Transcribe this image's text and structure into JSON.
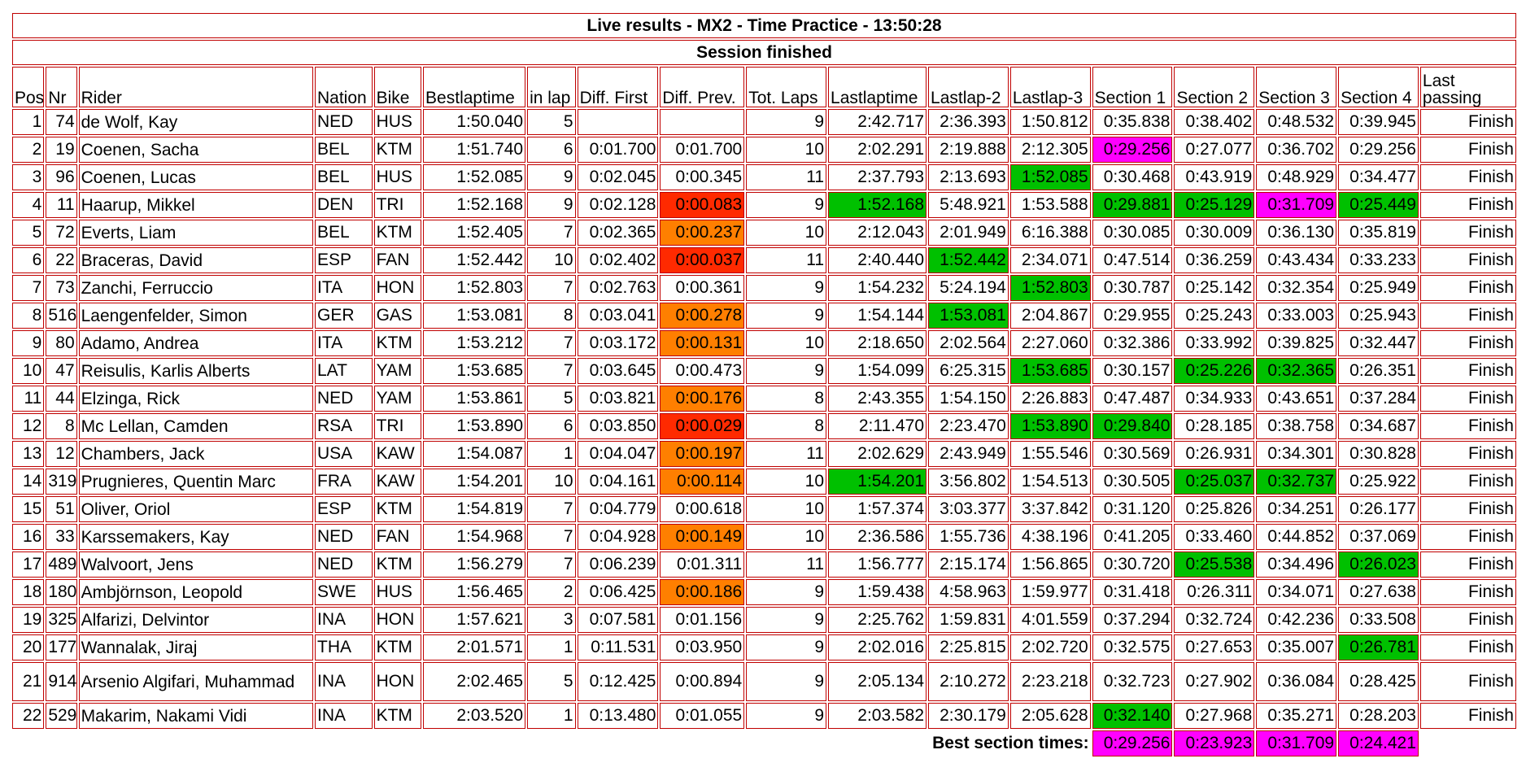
{
  "title": "Live results - MX2 - Time Practice - 13:50:28",
  "status": "Session finished",
  "columns": [
    "Pos",
    "Nr",
    "Rider",
    "Nation",
    "Bike",
    "Bestlaptime",
    "in lap",
    "Diff. First",
    "Diff. Prev.",
    "Tot. Laps",
    "Lastlaptime",
    "Lastlap-2",
    "Lastlap-3",
    "Section 1",
    "Section 2",
    "Section 3",
    "Section 4",
    "Last passing"
  ],
  "colors": {
    "best": "#ff00ff",
    "personal_best": "#00c000",
    "slower_big": "#ff2a00",
    "slower": "#ff7f00",
    "border": "#c00000"
  },
  "rows": [
    {
      "pos": "1",
      "nr": "74",
      "rider": "de Wolf, Kay",
      "nation": "NED",
      "bike": "HUS",
      "best": "1:50.040",
      "inlap": "5",
      "diff_first": "",
      "diff_prev": "",
      "tot": "9",
      "last": "2:42.717",
      "last2": "2:36.393",
      "last3": "1:50.812",
      "s1": "0:35.838",
      "s2": "0:38.402",
      "s3": "0:48.532",
      "s4": "0:39.945",
      "passing": "Finish",
      "hl": {}
    },
    {
      "pos": "2",
      "nr": "19",
      "rider": "Coenen, Sacha",
      "nation": "BEL",
      "bike": "KTM",
      "best": "1:51.740",
      "inlap": "6",
      "diff_first": "0:01.700",
      "diff_prev": "0:01.700",
      "tot": "10",
      "last": "2:02.291",
      "last2": "2:19.888",
      "last3": "2:12.305",
      "s1": "0:29.256",
      "s2": "0:27.077",
      "s3": "0:36.702",
      "s4": "0:29.256",
      "passing": "Finish",
      "hl": {
        "s1": "best"
      }
    },
    {
      "pos": "3",
      "nr": "96",
      "rider": "Coenen, Lucas",
      "nation": "BEL",
      "bike": "HUS",
      "best": "1:52.085",
      "inlap": "9",
      "diff_first": "0:02.045",
      "diff_prev": "0:00.345",
      "tot": "11",
      "last": "2:37.793",
      "last2": "2:13.693",
      "last3": "1:52.085",
      "s1": "0:30.468",
      "s2": "0:43.919",
      "s3": "0:48.929",
      "s4": "0:34.477",
      "passing": "Finish",
      "hl": {
        "last3": "pb"
      }
    },
    {
      "pos": "4",
      "nr": "11",
      "rider": "Haarup, Mikkel",
      "nation": "DEN",
      "bike": "TRI",
      "best": "1:52.168",
      "inlap": "9",
      "diff_first": "0:02.128",
      "diff_prev": "0:00.083",
      "tot": "9",
      "last": "1:52.168",
      "last2": "5:48.921",
      "last3": "1:53.588",
      "s1": "0:29.881",
      "s2": "0:25.129",
      "s3": "0:31.709",
      "s4": "0:25.449",
      "passing": "Finish",
      "hl": {
        "diff_prev": "slowbig",
        "last": "pb",
        "s1": "pb",
        "s2": "pb",
        "s3": "best",
        "s4": "pb"
      }
    },
    {
      "pos": "5",
      "nr": "72",
      "rider": "Everts, Liam",
      "nation": "BEL",
      "bike": "KTM",
      "best": "1:52.405",
      "inlap": "7",
      "diff_first": "0:02.365",
      "diff_prev": "0:00.237",
      "tot": "10",
      "last": "2:12.043",
      "last2": "2:01.949",
      "last3": "6:16.388",
      "s1": "0:30.085",
      "s2": "0:30.009",
      "s3": "0:36.130",
      "s4": "0:35.819",
      "passing": "Finish",
      "hl": {
        "diff_prev": "slow"
      }
    },
    {
      "pos": "6",
      "nr": "22",
      "rider": "Braceras, David",
      "nation": "ESP",
      "bike": "FAN",
      "best": "1:52.442",
      "inlap": "10",
      "diff_first": "0:02.402",
      "diff_prev": "0:00.037",
      "tot": "11",
      "last": "2:40.440",
      "last2": "1:52.442",
      "last3": "2:34.071",
      "s1": "0:47.514",
      "s2": "0:36.259",
      "s3": "0:43.434",
      "s4": "0:33.233",
      "passing": "Finish",
      "hl": {
        "diff_prev": "slowbig",
        "last2": "pb"
      }
    },
    {
      "pos": "7",
      "nr": "73",
      "rider": "Zanchi, Ferruccio",
      "nation": "ITA",
      "bike": "HON",
      "best": "1:52.803",
      "inlap": "7",
      "diff_first": "0:02.763",
      "diff_prev": "0:00.361",
      "tot": "9",
      "last": "1:54.232",
      "last2": "5:24.194",
      "last3": "1:52.803",
      "s1": "0:30.787",
      "s2": "0:25.142",
      "s3": "0:32.354",
      "s4": "0:25.949",
      "passing": "Finish",
      "hl": {
        "last3": "pb"
      }
    },
    {
      "pos": "8",
      "nr": "516",
      "rider": "Laengenfelder, Simon",
      "nation": "GER",
      "bike": "GAS",
      "best": "1:53.081",
      "inlap": "8",
      "diff_first": "0:03.041",
      "diff_prev": "0:00.278",
      "tot": "9",
      "last": "1:54.144",
      "last2": "1:53.081",
      "last3": "2:04.867",
      "s1": "0:29.955",
      "s2": "0:25.243",
      "s3": "0:33.003",
      "s4": "0:25.943",
      "passing": "Finish",
      "hl": {
        "diff_prev": "slow",
        "last2": "pb"
      }
    },
    {
      "pos": "9",
      "nr": "80",
      "rider": "Adamo, Andrea",
      "nation": "ITA",
      "bike": "KTM",
      "best": "1:53.212",
      "inlap": "7",
      "diff_first": "0:03.172",
      "diff_prev": "0:00.131",
      "tot": "10",
      "last": "2:18.650",
      "last2": "2:02.564",
      "last3": "2:27.060",
      "s1": "0:32.386",
      "s2": "0:33.992",
      "s3": "0:39.825",
      "s4": "0:32.447",
      "passing": "Finish",
      "hl": {
        "diff_prev": "slow"
      }
    },
    {
      "pos": "10",
      "nr": "47",
      "rider": "Reisulis, Karlis Alberts",
      "nation": "LAT",
      "bike": "YAM",
      "best": "1:53.685",
      "inlap": "7",
      "diff_first": "0:03.645",
      "diff_prev": "0:00.473",
      "tot": "9",
      "last": "1:54.099",
      "last2": "6:25.315",
      "last3": "1:53.685",
      "s1": "0:30.157",
      "s2": "0:25.226",
      "s3": "0:32.365",
      "s4": "0:26.351",
      "passing": "Finish",
      "hl": {
        "last3": "pb",
        "s2": "pb",
        "s3": "pb"
      }
    },
    {
      "pos": "11",
      "nr": "44",
      "rider": "Elzinga, Rick",
      "nation": "NED",
      "bike": "YAM",
      "best": "1:53.861",
      "inlap": "5",
      "diff_first": "0:03.821",
      "diff_prev": "0:00.176",
      "tot": "8",
      "last": "2:43.355",
      "last2": "1:54.150",
      "last3": "2:26.883",
      "s1": "0:47.487",
      "s2": "0:34.933",
      "s3": "0:43.651",
      "s4": "0:37.284",
      "passing": "Finish",
      "hl": {
        "diff_prev": "slow"
      }
    },
    {
      "pos": "12",
      "nr": "8",
      "rider": "Mc Lellan, Camden",
      "nation": "RSA",
      "bike": "TRI",
      "best": "1:53.890",
      "inlap": "6",
      "diff_first": "0:03.850",
      "diff_prev": "0:00.029",
      "tot": "8",
      "last": "2:11.470",
      "last2": "2:23.470",
      "last3": "1:53.890",
      "s1": "0:29.840",
      "s2": "0:28.185",
      "s3": "0:38.758",
      "s4": "0:34.687",
      "passing": "Finish",
      "hl": {
        "diff_prev": "slowbig",
        "last3": "pb",
        "s1": "pb"
      }
    },
    {
      "pos": "13",
      "nr": "12",
      "rider": "Chambers, Jack",
      "nation": "USA",
      "bike": "KAW",
      "best": "1:54.087",
      "inlap": "1",
      "diff_first": "0:04.047",
      "diff_prev": "0:00.197",
      "tot": "11",
      "last": "2:02.629",
      "last2": "2:43.949",
      "last3": "1:55.546",
      "s1": "0:30.569",
      "s2": "0:26.931",
      "s3": "0:34.301",
      "s4": "0:30.828",
      "passing": "Finish",
      "hl": {
        "diff_prev": "slow"
      }
    },
    {
      "pos": "14",
      "nr": "319",
      "rider": "Prugnieres, Quentin Marc",
      "nation": "FRA",
      "bike": "KAW",
      "best": "1:54.201",
      "inlap": "10",
      "diff_first": "0:04.161",
      "diff_prev": "0:00.114",
      "tot": "10",
      "last": "1:54.201",
      "last2": "3:56.802",
      "last3": "1:54.513",
      "s1": "0:30.505",
      "s2": "0:25.037",
      "s3": "0:32.737",
      "s4": "0:25.922",
      "passing": "Finish",
      "hl": {
        "diff_prev": "slow",
        "last": "pb",
        "s2": "pb",
        "s3": "pb"
      }
    },
    {
      "pos": "15",
      "nr": "51",
      "rider": "Oliver, Oriol",
      "nation": "ESP",
      "bike": "KTM",
      "best": "1:54.819",
      "inlap": "7",
      "diff_first": "0:04.779",
      "diff_prev": "0:00.618",
      "tot": "10",
      "last": "1:57.374",
      "last2": "3:03.377",
      "last3": "3:37.842",
      "s1": "0:31.120",
      "s2": "0:25.826",
      "s3": "0:34.251",
      "s4": "0:26.177",
      "passing": "Finish",
      "hl": {}
    },
    {
      "pos": "16",
      "nr": "33",
      "rider": "Karssemakers, Kay",
      "nation": "NED",
      "bike": "FAN",
      "best": "1:54.968",
      "inlap": "7",
      "diff_first": "0:04.928",
      "diff_prev": "0:00.149",
      "tot": "10",
      "last": "2:36.586",
      "last2": "1:55.736",
      "last3": "4:38.196",
      "s1": "0:41.205",
      "s2": "0:33.460",
      "s3": "0:44.852",
      "s4": "0:37.069",
      "passing": "Finish",
      "hl": {
        "diff_prev": "slow"
      }
    },
    {
      "pos": "17",
      "nr": "489",
      "rider": "Walvoort, Jens",
      "nation": "NED",
      "bike": "KTM",
      "best": "1:56.279",
      "inlap": "7",
      "diff_first": "0:06.239",
      "diff_prev": "0:01.311",
      "tot": "11",
      "last": "1:56.777",
      "last2": "2:15.174",
      "last3": "1:56.865",
      "s1": "0:30.720",
      "s2": "0:25.538",
      "s3": "0:34.496",
      "s4": "0:26.023",
      "passing": "Finish",
      "hl": {
        "s2": "pb",
        "s4": "pb"
      }
    },
    {
      "pos": "18",
      "nr": "180",
      "rider": "Ambjörnson, Leopold",
      "nation": "SWE",
      "bike": "HUS",
      "best": "1:56.465",
      "inlap": "2",
      "diff_first": "0:06.425",
      "diff_prev": "0:00.186",
      "tot": "9",
      "last": "1:59.438",
      "last2": "4:58.963",
      "last3": "1:59.977",
      "s1": "0:31.418",
      "s2": "0:26.311",
      "s3": "0:34.071",
      "s4": "0:27.638",
      "passing": "Finish",
      "hl": {
        "diff_prev": "slow"
      }
    },
    {
      "pos": "19",
      "nr": "325",
      "rider": "Alfarizi, Delvintor",
      "nation": "INA",
      "bike": "HON",
      "best": "1:57.621",
      "inlap": "3",
      "diff_first": "0:07.581",
      "diff_prev": "0:01.156",
      "tot": "9",
      "last": "2:25.762",
      "last2": "1:59.831",
      "last3": "4:01.559",
      "s1": "0:37.294",
      "s2": "0:32.724",
      "s3": "0:42.236",
      "s4": "0:33.508",
      "passing": "Finish",
      "hl": {}
    },
    {
      "pos": "20",
      "nr": "177",
      "rider": "Wannalak, Jiraj",
      "nation": "THA",
      "bike": "KTM",
      "best": "2:01.571",
      "inlap": "1",
      "diff_first": "0:11.531",
      "diff_prev": "0:03.950",
      "tot": "9",
      "last": "2:02.016",
      "last2": "2:25.815",
      "last3": "2:02.720",
      "s1": "0:32.575",
      "s2": "0:27.653",
      "s3": "0:35.007",
      "s4": "0:26.781",
      "passing": "Finish",
      "hl": {
        "s4": "pb"
      }
    },
    {
      "pos": "21",
      "nr": "914",
      "rider": "Arsenio Algifari, Muhammad",
      "nation": "INA",
      "bike": "HON",
      "best": "2:02.465",
      "inlap": "5",
      "diff_first": "0:12.425",
      "diff_prev": "0:00.894",
      "tot": "9",
      "last": "2:05.134",
      "last2": "2:10.272",
      "last3": "2:23.218",
      "s1": "0:32.723",
      "s2": "0:27.902",
      "s3": "0:36.084",
      "s4": "0:28.425",
      "passing": "Finish",
      "hl": {},
      "tall": true
    },
    {
      "pos": "22",
      "nr": "529",
      "rider": "Makarim, Nakami Vidi",
      "nation": "INA",
      "bike": "KTM",
      "best": "2:03.520",
      "inlap": "1",
      "diff_first": "0:13.480",
      "diff_prev": "0:01.055",
      "tot": "9",
      "last": "2:03.582",
      "last2": "2:30.179",
      "last3": "2:05.628",
      "s1": "0:32.140",
      "s2": "0:27.968",
      "s3": "0:35.271",
      "s4": "0:28.203",
      "passing": "Finish",
      "hl": {
        "s1": "pb"
      }
    }
  ],
  "best_sections": {
    "label": "Best section times:",
    "s1": "0:29.256",
    "s2": "0:23.923",
    "s3": "0:31.709",
    "s4": "0:24.421"
  }
}
